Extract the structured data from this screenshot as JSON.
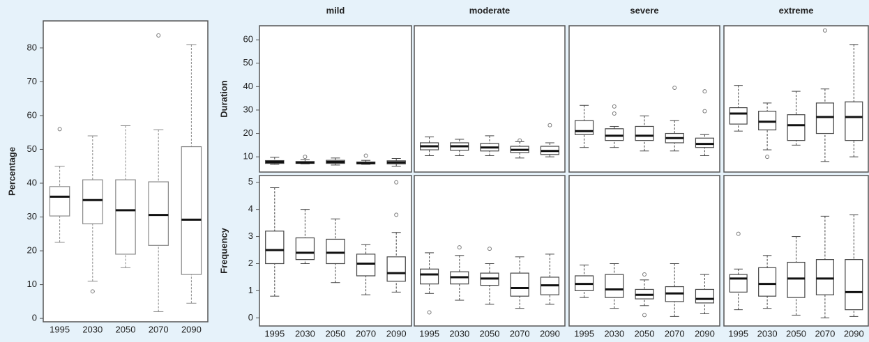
{
  "chart_data": [
    {
      "type": "box",
      "ylabel": "Percentage",
      "categories": [
        "1995",
        "2030",
        "2050",
        "2070",
        "2090"
      ],
      "ylim": [
        -1,
        88
      ],
      "yticks": [
        0,
        10,
        20,
        30,
        40,
        50,
        60,
        70,
        80
      ],
      "color": "#888888",
      "dashed_whiskers": true,
      "boxes": [
        {
          "low": 22.5,
          "q1": 30.3,
          "median": 36,
          "q3": 39,
          "high": 45,
          "outliers": [
            56
          ]
        },
        {
          "low": 11,
          "q1": 28,
          "median": 35,
          "q3": 41,
          "high": 54,
          "outliers": [
            8
          ]
        },
        {
          "low": 15,
          "q1": 19,
          "median": 32,
          "q3": 41,
          "high": 57,
          "outliers": []
        },
        {
          "low": 2,
          "q1": 21.6,
          "median": 30.6,
          "q3": 40.4,
          "high": 55.8,
          "outliers": [
            83.7
          ]
        },
        {
          "low": 4.5,
          "q1": 13,
          "median": 29.2,
          "q3": 50.8,
          "high": 81,
          "outliers": []
        }
      ]
    },
    {
      "type": "box",
      "title": "mild",
      "ylabel": "Duration",
      "ylim": [
        3.5,
        66
      ],
      "yticks": [
        10,
        20,
        30,
        40,
        50,
        60
      ],
      "color": "#444444",
      "dashed_whiskers": true,
      "boxes": [
        {
          "low": 6.8,
          "q1": 7.2,
          "median": 7.8,
          "q3": 8.4,
          "high": 9.8,
          "outliers": []
        },
        {
          "low": 7,
          "q1": 7.2,
          "median": 7.5,
          "q3": 8,
          "high": 8.8,
          "outliers": [
            10
          ]
        },
        {
          "low": 6.5,
          "q1": 7.2,
          "median": 7.8,
          "q3": 8.5,
          "high": 9.5,
          "outliers": []
        },
        {
          "low": 6.8,
          "q1": 7,
          "median": 7.3,
          "q3": 7.8,
          "high": 8.5,
          "outliers": [
            10.5
          ]
        },
        {
          "low": 6,
          "q1": 7,
          "median": 7.6,
          "q3": 8.3,
          "high": 9.3,
          "outliers": []
        }
      ]
    },
    {
      "type": "box",
      "title": "moderate",
      "ylim": [
        3.5,
        66
      ],
      "color": "#444444",
      "dashed_whiskers": true,
      "boxes": [
        {
          "low": 10.5,
          "q1": 13,
          "median": 14.5,
          "q3": 16,
          "high": 18.5,
          "outliers": []
        },
        {
          "low": 10.5,
          "q1": 12.8,
          "median": 14.5,
          "q3": 16,
          "high": 17.5,
          "outliers": []
        },
        {
          "low": 10.5,
          "q1": 12.5,
          "median": 14,
          "q3": 15.7,
          "high": 19,
          "outliers": []
        },
        {
          "low": 9.5,
          "q1": 11.8,
          "median": 13,
          "q3": 14.5,
          "high": 16.5,
          "outliers": [
            17
          ]
        },
        {
          "low": 10,
          "q1": 11,
          "median": 12.5,
          "q3": 14.5,
          "high": 16,
          "outliers": [
            23.5
          ]
        }
      ]
    },
    {
      "type": "box",
      "title": "severe",
      "ylim": [
        3.5,
        66
      ],
      "color": "#444444",
      "dashed_whiskers": true,
      "boxes": [
        {
          "low": 14,
          "q1": 19.5,
          "median": 21,
          "q3": 25.5,
          "high": 32,
          "outliers": []
        },
        {
          "low": 14,
          "q1": 17,
          "median": 19,
          "q3": 22,
          "high": 23,
          "outliers": [
            28.5,
            31.5
          ]
        },
        {
          "low": 12.5,
          "q1": 17,
          "median": 19,
          "q3": 23,
          "high": 27.5,
          "outliers": []
        },
        {
          "low": 12.5,
          "q1": 16,
          "median": 18,
          "q3": 20,
          "high": 25.5,
          "outliers": [
            39.5
          ]
        },
        {
          "low": 10.5,
          "q1": 14,
          "median": 15.5,
          "q3": 18,
          "high": 19.5,
          "outliers": [
            29.5,
            38
          ]
        }
      ]
    },
    {
      "type": "box",
      "title": "extreme",
      "ylim": [
        3.5,
        66
      ],
      "color": "#444444",
      "dashed_whiskers": true,
      "boxes": [
        {
          "low": 21,
          "q1": 24,
          "median": 28.5,
          "q3": 31,
          "high": 40.5,
          "outliers": []
        },
        {
          "low": 13,
          "q1": 21.5,
          "median": 25,
          "q3": 29.5,
          "high": 33,
          "outliers": [
            10
          ]
        },
        {
          "low": 15,
          "q1": 17,
          "median": 23.5,
          "q3": 28,
          "high": 38,
          "outliers": []
        },
        {
          "low": 8,
          "q1": 20,
          "median": 27,
          "q3": 33,
          "high": 39,
          "outliers": [
            64
          ]
        },
        {
          "low": 10,
          "q1": 17,
          "median": 27,
          "q3": 33.5,
          "high": 58,
          "outliers": []
        }
      ]
    },
    {
      "type": "box",
      "ylabel": "Frequency",
      "categories": [
        "1995",
        "2030",
        "2050",
        "2070",
        "2090"
      ],
      "ylim": [
        -0.3,
        5.25
      ],
      "yticks": [
        0,
        1,
        2,
        3,
        4,
        5
      ],
      "color": "#444444",
      "dashed_whiskers": true,
      "boxes": [
        {
          "low": 0.8,
          "q1": 2.0,
          "median": 2.5,
          "q3": 3.2,
          "high": 4.8,
          "outliers": []
        },
        {
          "low": 2.0,
          "q1": 2.15,
          "median": 2.4,
          "q3": 2.95,
          "high": 4.0,
          "outliers": []
        },
        {
          "low": 1.3,
          "q1": 2.0,
          "median": 2.4,
          "q3": 2.9,
          "high": 3.65,
          "outliers": []
        },
        {
          "low": 0.85,
          "q1": 1.55,
          "median": 2.0,
          "q3": 2.35,
          "high": 2.7,
          "outliers": []
        },
        {
          "low": 0.95,
          "q1": 1.35,
          "median": 1.65,
          "q3": 2.25,
          "high": 3.15,
          "outliers": [
            3.8,
            5.0
          ]
        }
      ]
    },
    {
      "type": "box",
      "categories": [
        "1995",
        "2030",
        "2050",
        "2070",
        "2090"
      ],
      "ylim": [
        -0.3,
        5.25
      ],
      "color": "#444444",
      "dashed_whiskers": true,
      "boxes": [
        {
          "low": 0.9,
          "q1": 1.25,
          "median": 1.6,
          "q3": 1.8,
          "high": 2.4,
          "outliers": [
            0.2
          ]
        },
        {
          "low": 0.65,
          "q1": 1.25,
          "median": 1.5,
          "q3": 1.7,
          "high": 2.3,
          "outliers": [
            2.6
          ]
        },
        {
          "low": 0.5,
          "q1": 1.2,
          "median": 1.45,
          "q3": 1.65,
          "high": 2.0,
          "outliers": [
            2.55
          ]
        },
        {
          "low": 0.35,
          "q1": 0.8,
          "median": 1.1,
          "q3": 1.65,
          "high": 2.25,
          "outliers": []
        },
        {
          "low": 0.5,
          "q1": 0.85,
          "median": 1.2,
          "q3": 1.5,
          "high": 2.35,
          "outliers": []
        }
      ]
    },
    {
      "type": "box",
      "categories": [
        "1995",
        "2030",
        "2050",
        "2070",
        "2090"
      ],
      "ylim": [
        -0.3,
        5.25
      ],
      "color": "#444444",
      "dashed_whiskers": true,
      "boxes": [
        {
          "low": 0.75,
          "q1": 1.0,
          "median": 1.25,
          "q3": 1.55,
          "high": 1.95,
          "outliers": []
        },
        {
          "low": 0.35,
          "q1": 0.75,
          "median": 1.05,
          "q3": 1.6,
          "high": 2.0,
          "outliers": []
        },
        {
          "low": 0.45,
          "q1": 0.7,
          "median": 0.85,
          "q3": 1.05,
          "high": 1.4,
          "outliers": [
            0.1,
            1.6
          ]
        },
        {
          "low": 0.05,
          "q1": 0.6,
          "median": 0.9,
          "q3": 1.15,
          "high": 2.0,
          "outliers": []
        },
        {
          "low": 0.15,
          "q1": 0.55,
          "median": 0.7,
          "q3": 1.05,
          "high": 1.6,
          "outliers": []
        }
      ]
    },
    {
      "type": "box",
      "categories": [
        "1995",
        "2030",
        "2050",
        "2070",
        "2090"
      ],
      "ylim": [
        -0.3,
        5.25
      ],
      "color": "#444444",
      "dashed_whiskers": true,
      "boxes": [
        {
          "low": 0.3,
          "q1": 0.95,
          "median": 1.45,
          "q3": 1.6,
          "high": 1.8,
          "outliers": [
            3.1
          ]
        },
        {
          "low": 0.35,
          "q1": 0.8,
          "median": 1.25,
          "q3": 1.85,
          "high": 2.3,
          "outliers": []
        },
        {
          "low": 0.1,
          "q1": 0.75,
          "median": 1.45,
          "q3": 2.05,
          "high": 3.0,
          "outliers": []
        },
        {
          "low": 0.0,
          "q1": 0.85,
          "median": 1.45,
          "q3": 2.15,
          "high": 3.75,
          "outliers": []
        },
        {
          "low": 0.05,
          "q1": 0.3,
          "median": 0.95,
          "q3": 2.15,
          "high": 3.8,
          "outliers": []
        }
      ]
    }
  ]
}
